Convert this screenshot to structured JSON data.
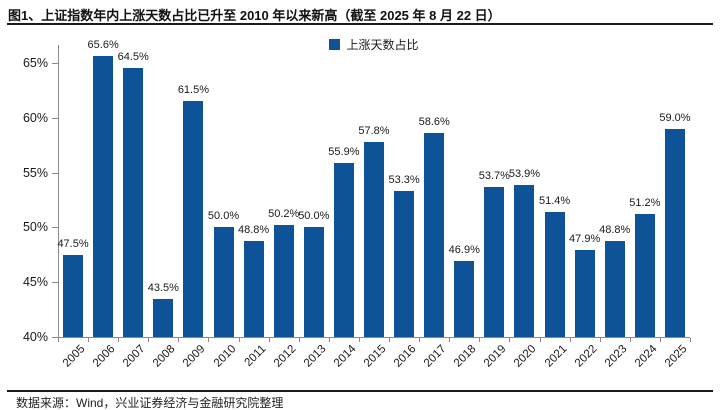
{
  "header": {
    "title": "图1、上证指数年内上涨天数占比已升至 2010 年以来新高（截至 2025 年 8 月 22 日）"
  },
  "legend": {
    "label": "上涨天数占比"
  },
  "footer": {
    "source": "数据来源：Wind，兴业证券经济与金融研究院整理"
  },
  "colors": {
    "bar": "#0E5397",
    "axis": "#8a8a8a",
    "rule": "#1a1a1a",
    "text": "#1a1a1a"
  },
  "chart_data": {
    "type": "bar",
    "title": "图1、上证指数年内上涨天数占比已升至 2010 年以来新高（截至 2025 年 8 月 22 日）",
    "categories": [
      "2005",
      "2006",
      "2007",
      "2008",
      "2009",
      "2010",
      "2011",
      "2012",
      "2013",
      "2014",
      "2015",
      "2016",
      "2017",
      "2018",
      "2019",
      "2020",
      "2021",
      "2022",
      "2023",
      "2024",
      "2025"
    ],
    "values": [
      47.5,
      65.6,
      64.5,
      43.5,
      61.5,
      50.0,
      48.8,
      50.2,
      50.0,
      55.9,
      57.8,
      53.3,
      58.6,
      46.9,
      53.7,
      53.9,
      51.4,
      47.9,
      48.8,
      51.2,
      59.0
    ],
    "value_labels": [
      "47.5%",
      "65.6%",
      "64.5%",
      "43.5%",
      "61.5%",
      "50.0%",
      "48.8%",
      "50.2%",
      "50.0%",
      "55.9%",
      "57.8%",
      "53.3%",
      "58.6%",
      "46.9%",
      "53.7%",
      "53.9%",
      "51.4%",
      "47.9%",
      "48.8%",
      "51.2%",
      "59.0%"
    ],
    "xlabel": "",
    "ylabel": "",
    "ylim": [
      40,
      65
    ],
    "yticks": [
      40,
      45,
      50,
      55,
      60,
      65
    ],
    "ytick_labels": [
      "40%",
      "45%",
      "50%",
      "55%",
      "60%",
      "65%"
    ],
    "unit": "%",
    "legend": [
      "上涨天数占比"
    ],
    "legend_position": "top-center",
    "grid": false,
    "bar_labels_shown": true
  }
}
